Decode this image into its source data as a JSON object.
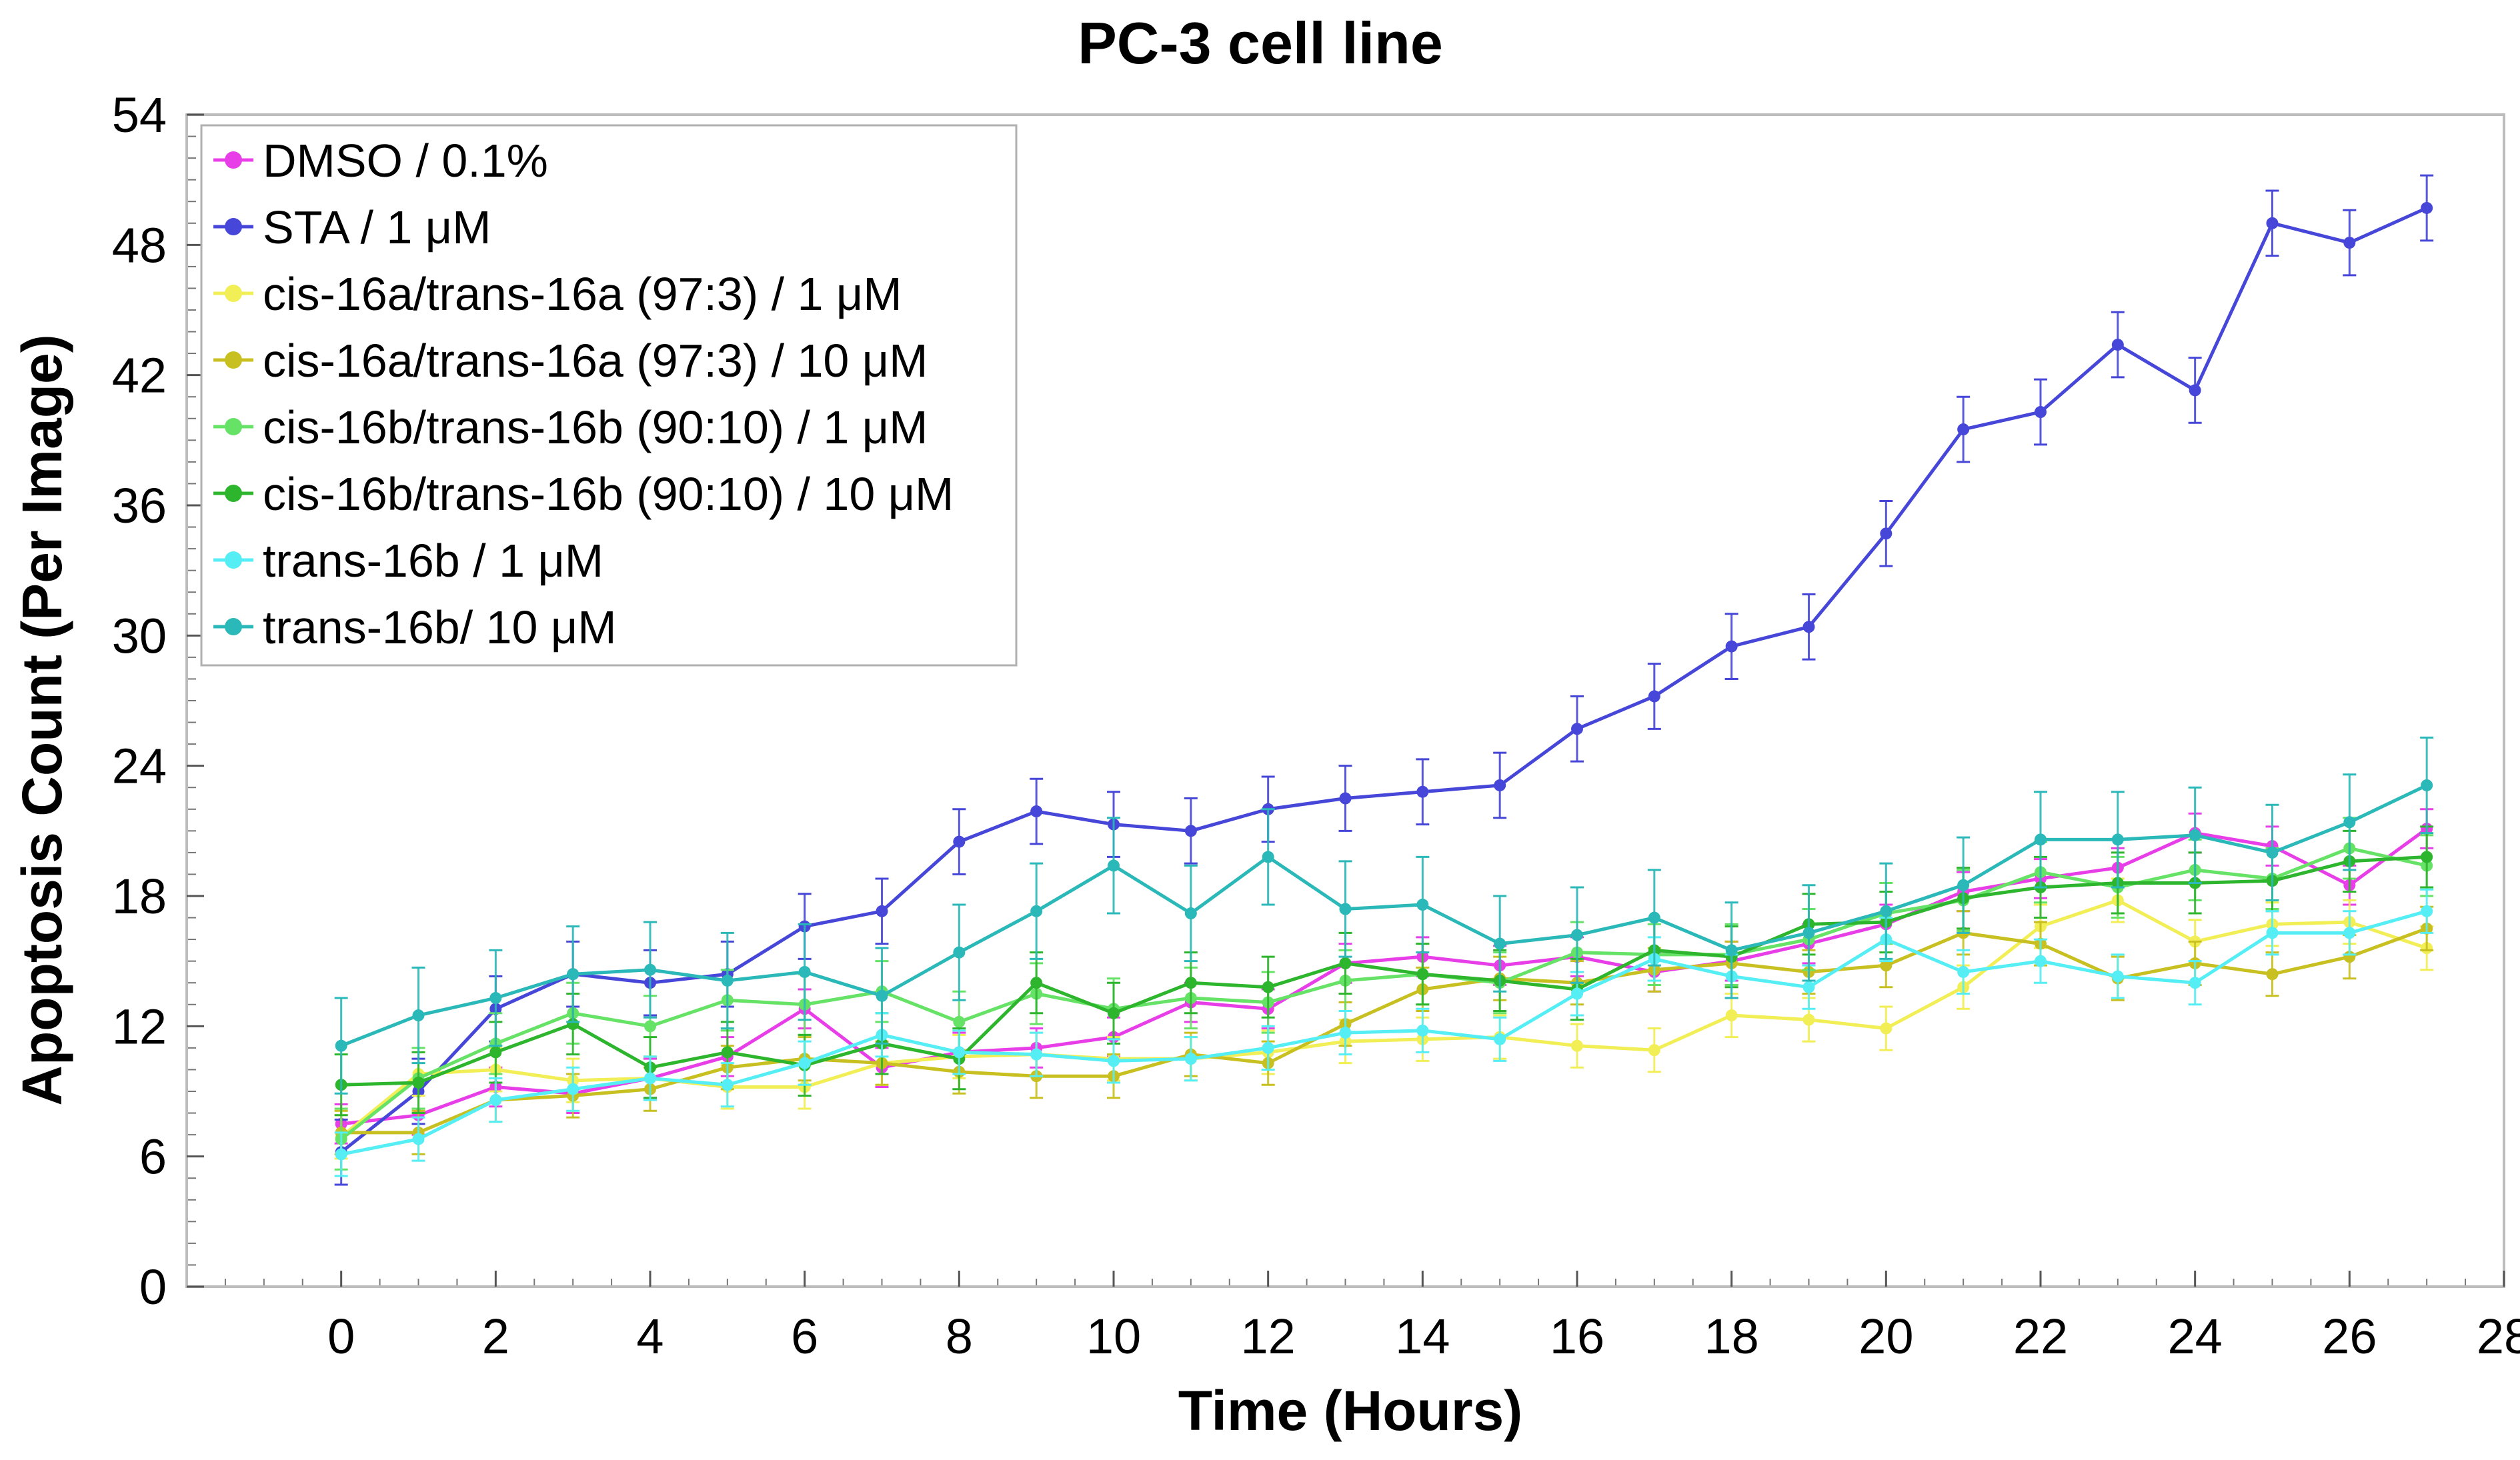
{
  "chart_data": {
    "type": "line",
    "title": "PC-3 cell line",
    "xlabel": "Time (Hours)",
    "ylabel": "Apoptosis Count (Per Image)",
    "xlim": [
      -2,
      28
    ],
    "ylim": [
      0,
      54
    ],
    "xticks": [
      0,
      2,
      4,
      6,
      8,
      10,
      12,
      14,
      16,
      18,
      20,
      22,
      24,
      26,
      28
    ],
    "yticks": [
      0,
      6,
      12,
      18,
      24,
      30,
      36,
      42,
      48,
      54
    ],
    "x": [
      0,
      1,
      2,
      3,
      4,
      5,
      6,
      7,
      8,
      9,
      10,
      11,
      12,
      13,
      14,
      15,
      16,
      17,
      18,
      19,
      20,
      21,
      22,
      23,
      24,
      25,
      26,
      27
    ],
    "legend_position": "top-left",
    "series": [
      {
        "name": "DMSO /  0.1%",
        "color": "#e83ee8",
        "err": 0.9,
        "values": [
          7.5,
          7.9,
          9.2,
          8.9,
          9.6,
          10.6,
          12.8,
          10.1,
          10.8,
          11.0,
          11.5,
          13.1,
          12.8,
          14.9,
          15.2,
          14.8,
          15.2,
          14.5,
          15.0,
          15.8,
          16.7,
          18.2,
          18.8,
          19.3,
          20.9,
          20.3,
          18.5,
          21.1
        ]
      },
      {
        "name": "STA / 1 μM",
        "color": "#4646d8",
        "err": 1.5,
        "values": [
          6.2,
          9.0,
          12.8,
          14.4,
          14.0,
          14.4,
          16.6,
          17.3,
          20.5,
          21.9,
          21.3,
          21.0,
          22.0,
          22.5,
          22.8,
          23.1,
          25.7,
          27.2,
          29.5,
          30.4,
          34.7,
          39.5,
          40.3,
          43.4,
          41.3,
          49.0,
          48.1,
          49.7
        ]
      },
      {
        "name": "cis-16a/trans-16a (97:3) / 1 μM",
        "color": "#f2ee55",
        "err": 1.0,
        "values": [
          6.9,
          9.8,
          10.0,
          9.5,
          9.6,
          9.2,
          9.2,
          10.3,
          10.6,
          10.7,
          10.5,
          10.5,
          10.8,
          11.3,
          11.4,
          11.5,
          11.1,
          10.9,
          12.5,
          12.3,
          11.9,
          13.8,
          16.6,
          17.8,
          15.9,
          16.7,
          16.8,
          15.6
        ]
      },
      {
        "name": "cis-16a/trans-16a (97:3) / 10 μM",
        "color": "#c8c020",
        "err": 1.0,
        "values": [
          7.1,
          7.1,
          8.6,
          8.8,
          9.1,
          10.1,
          10.5,
          10.3,
          9.9,
          9.7,
          9.7,
          10.7,
          10.3,
          12.1,
          13.7,
          14.2,
          14.0,
          14.6,
          14.9,
          14.5,
          14.8,
          16.3,
          15.8,
          14.2,
          14.9,
          14.4,
          15.2,
          16.5
        ]
      },
      {
        "name": "cis-16b/trans-16b (90:10) / 1 μM",
        "color": "#66e266",
        "err": 1.4,
        "values": [
          6.8,
          9.6,
          11.2,
          12.6,
          12.0,
          13.2,
          13.0,
          13.6,
          12.2,
          13.5,
          12.8,
          13.3,
          13.1,
          14.1,
          14.4,
          14.0,
          15.4,
          15.3,
          15.3,
          16.0,
          17.2,
          17.8,
          19.1,
          18.4,
          19.2,
          18.8,
          20.2,
          19.4
        ]
      },
      {
        "name": "cis-16b/trans-16b (90:10) / 10 μM",
        "color": "#2eb52e",
        "err": 1.4,
        "values": [
          9.3,
          9.4,
          10.8,
          12.1,
          10.1,
          10.8,
          10.2,
          11.2,
          10.5,
          14.0,
          12.6,
          14.0,
          13.8,
          14.9,
          14.4,
          14.1,
          13.7,
          15.5,
          15.2,
          16.7,
          16.8,
          17.9,
          18.4,
          18.6,
          18.6,
          18.7,
          19.6,
          19.8
        ]
      },
      {
        "name": "trans-16b / 1 μM",
        "color": "#55eef5",
        "err": 1.0,
        "values": [
          6.1,
          6.8,
          8.6,
          9.1,
          9.6,
          9.3,
          10.3,
          11.6,
          10.8,
          10.7,
          10.4,
          10.5,
          11.0,
          11.7,
          11.8,
          11.4,
          13.5,
          15.1,
          14.3,
          13.8,
          16.0,
          14.5,
          15.0,
          14.3,
          14.0,
          16.3,
          16.3,
          17.3
        ]
      },
      {
        "name": "trans-16b/ 10 μM",
        "color": "#2bb8b8",
        "err": 2.2,
        "values": [
          11.1,
          12.5,
          13.3,
          14.4,
          14.6,
          14.1,
          14.5,
          13.4,
          15.4,
          17.3,
          19.4,
          17.2,
          19.8,
          17.4,
          17.6,
          15.8,
          16.2,
          17.0,
          15.5,
          16.3,
          17.3,
          18.5,
          20.6,
          20.6,
          20.8,
          20.0,
          21.4,
          23.1
        ]
      }
    ]
  }
}
